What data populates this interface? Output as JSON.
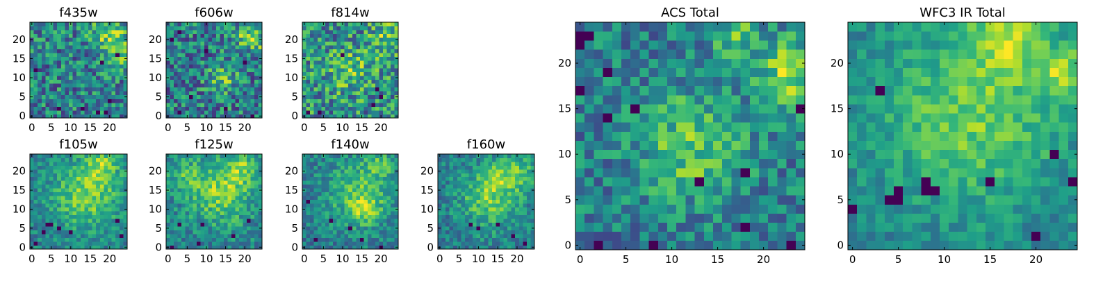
{
  "figure": {
    "background": "#ffffff",
    "colormap": "viridis"
  },
  "chart_data": [
    {
      "type": "heatmap",
      "title": "f435w",
      "xlabel": "",
      "ylabel": "",
      "grid": false,
      "xlim": [
        0,
        25
      ],
      "ylim": [
        0,
        25
      ],
      "xticks": [
        0,
        5,
        10,
        15,
        20
      ],
      "yticks": [
        0,
        5,
        10,
        15,
        20
      ],
      "xtick_labels": [
        "0",
        "5",
        "10",
        "15",
        "20"
      ],
      "ytick_labels": [
        "0",
        "5",
        "10",
        "15",
        "20"
      ],
      "size": 25,
      "seed": 11,
      "blobs": [
        [
          20,
          21,
          3.5,
          0.35
        ],
        [
          22,
          16,
          2.5,
          0.25
        ]
      ],
      "noise": 0.32,
      "dark_pixels": [
        [
          22,
          16
        ],
        [
          18,
          14
        ],
        [
          17,
          1
        ],
        [
          19,
          1
        ],
        [
          1,
          12
        ],
        [
          7,
          2
        ],
        [
          13,
          2
        ],
        [
          20,
          4
        ]
      ]
    },
    {
      "type": "heatmap",
      "title": "f606w",
      "xlabel": "",
      "ylabel": "",
      "grid": false,
      "xlim": [
        0,
        25
      ],
      "ylim": [
        0,
        25
      ],
      "xticks": [
        0,
        5,
        10,
        15,
        20
      ],
      "yticks": [
        0,
        5,
        10,
        15,
        20
      ],
      "xtick_labels": [
        "0",
        "5",
        "10",
        "15",
        "20"
      ],
      "ytick_labels": [
        "0",
        "5",
        "10",
        "15",
        "20"
      ],
      "size": 25,
      "seed": 23,
      "blobs": [
        [
          14,
          10,
          2.5,
          0.35
        ],
        [
          23,
          20,
          2.5,
          0.3
        ],
        [
          19,
          21,
          2.5,
          0.2
        ]
      ],
      "noise": 0.34,
      "dark_pixels": [
        [
          1,
          20
        ],
        [
          3,
          22
        ],
        [
          22,
          0
        ],
        [
          6,
          5
        ],
        [
          15,
          2
        ],
        [
          3,
          1
        ],
        [
          20,
          14
        ],
        [
          10,
          17
        ]
      ]
    },
    {
      "type": "heatmap",
      "title": "f814w",
      "xlabel": "",
      "ylabel": "",
      "grid": false,
      "xlim": [
        0,
        25
      ],
      "ylim": [
        0,
        25
      ],
      "xticks": [
        0,
        5,
        10,
        15,
        20
      ],
      "yticks": [
        0,
        5,
        10,
        15,
        20
      ],
      "xtick_labels": [
        "0",
        "5",
        "10",
        "15",
        "20"
      ],
      "ytick_labels": [
        "0",
        "5",
        "10",
        "15",
        "20"
      ],
      "size": 25,
      "seed": 37,
      "blobs": [
        [
          12,
          12,
          4,
          0.2
        ],
        [
          22,
          20,
          3,
          0.25
        ]
      ],
      "noise": 0.3,
      "dark_pixels": [
        [
          19,
          7
        ],
        [
          20,
          5
        ],
        [
          1,
          1
        ],
        [
          10,
          16
        ],
        [
          18,
          3
        ],
        [
          4,
          1
        ]
      ]
    },
    {
      "type": "heatmap",
      "title": "f105w",
      "xlabel": "",
      "ylabel": "",
      "grid": false,
      "xlim": [
        0,
        25
      ],
      "ylim": [
        0,
        25
      ],
      "xticks": [
        0,
        5,
        10,
        15,
        20
      ],
      "yticks": [
        0,
        5,
        10,
        15,
        20
      ],
      "xtick_labels": [
        "0",
        "5",
        "10",
        "15",
        "20"
      ],
      "ytick_labels": [
        "0",
        "5",
        "10",
        "15",
        "20"
      ],
      "size": 25,
      "seed": 41,
      "blobs": [
        [
          14,
          14,
          6,
          0.4
        ],
        [
          18,
          22,
          3,
          0.3
        ]
      ],
      "noise": 0.18,
      "dark_pixels": [
        [
          5,
          6
        ],
        [
          7,
          5
        ],
        [
          4,
          6
        ],
        [
          10,
          4
        ],
        [
          22,
          7
        ],
        [
          1,
          1
        ],
        [
          23,
          3
        ],
        [
          3,
          4
        ]
      ]
    },
    {
      "type": "heatmap",
      "title": "f125w",
      "xlabel": "",
      "ylabel": "",
      "grid": false,
      "xlim": [
        0,
        25
      ],
      "ylim": [
        0,
        25
      ],
      "xticks": [
        0,
        5,
        10,
        15,
        20
      ],
      "yticks": [
        0,
        5,
        10,
        15,
        20
      ],
      "xtick_labels": [
        "0",
        "5",
        "10",
        "15",
        "20"
      ],
      "ytick_labels": [
        "0",
        "5",
        "10",
        "15",
        "20"
      ],
      "size": 25,
      "seed": 53,
      "blobs": [
        [
          14,
          15,
          6,
          0.4
        ],
        [
          20,
          21,
          3,
          0.25
        ],
        [
          4,
          19,
          3,
          0.2
        ]
      ],
      "noise": 0.2,
      "dark_pixels": [
        [
          9,
          6
        ],
        [
          3,
          6
        ],
        [
          17,
          3
        ],
        [
          8,
          1
        ],
        [
          21,
          7
        ],
        [
          1,
          0
        ]
      ]
    },
    {
      "type": "heatmap",
      "title": "f140w",
      "xlabel": "",
      "ylabel": "",
      "grid": false,
      "xlim": [
        0,
        25
      ],
      "ylim": [
        0,
        25
      ],
      "xticks": [
        0,
        5,
        10,
        15,
        20
      ],
      "yticks": [
        0,
        5,
        10,
        15,
        20
      ],
      "xtick_labels": [
        "0",
        "5",
        "10",
        "15",
        "20"
      ],
      "ytick_labels": [
        "0",
        "5",
        "10",
        "15",
        "20"
      ],
      "size": 25,
      "seed": 67,
      "blobs": [
        [
          14,
          14,
          6,
          0.35
        ],
        [
          16,
          10,
          2.5,
          0.3
        ],
        [
          20,
          22,
          3,
          0.25
        ]
      ],
      "noise": 0.2,
      "dark_pixels": [
        [
          3,
          2
        ],
        [
          15,
          2
        ],
        [
          7,
          7
        ],
        [
          12,
          5
        ],
        [
          20,
          0
        ],
        [
          1,
          12
        ]
      ]
    },
    {
      "type": "heatmap",
      "title": "f160w",
      "xlabel": "",
      "ylabel": "",
      "grid": false,
      "xlim": [
        0,
        25
      ],
      "ylim": [
        0,
        25
      ],
      "xticks": [
        0,
        5,
        10,
        15,
        20
      ],
      "yticks": [
        0,
        5,
        10,
        15,
        20
      ],
      "xtick_labels": [
        "0",
        "5",
        "10",
        "15",
        "20"
      ],
      "ytick_labels": [
        "0",
        "5",
        "10",
        "15",
        "20"
      ],
      "size": 25,
      "seed": 79,
      "blobs": [
        [
          13,
          13,
          5.5,
          0.4
        ],
        [
          16,
          19,
          3,
          0.25
        ],
        [
          22,
          20,
          3,
          0.25
        ]
      ],
      "noise": 0.2,
      "dark_pixels": [
        [
          8,
          6
        ],
        [
          15,
          6
        ],
        [
          19,
          3
        ],
        [
          22,
          1
        ],
        [
          10,
          5
        ]
      ]
    },
    {
      "type": "heatmap",
      "title": "ACS Total",
      "xlabel": "",
      "ylabel": "",
      "grid": false,
      "xlim": [
        0,
        25
      ],
      "ylim": [
        0,
        25
      ],
      "xticks": [
        0,
        5,
        10,
        15,
        20
      ],
      "yticks": [
        0,
        5,
        10,
        15,
        20
      ],
      "xtick_labels": [
        "0",
        "5",
        "10",
        "15",
        "20"
      ],
      "ytick_labels": [
        "0",
        "5",
        "10",
        "15",
        "20"
      ],
      "size": 25,
      "seed": 97,
      "blobs": [
        [
          12,
          11,
          4,
          0.35
        ],
        [
          23,
          19,
          2.5,
          0.45
        ],
        [
          17,
          23,
          2,
          0.3
        ]
      ],
      "noise": 0.24,
      "dark_pixels": [
        [
          0,
          23
        ],
        [
          1,
          23
        ],
        [
          0,
          22
        ],
        [
          3,
          19
        ],
        [
          6,
          15
        ],
        [
          3,
          14
        ],
        [
          18,
          8
        ],
        [
          13,
          7
        ],
        [
          18,
          2
        ],
        [
          2,
          0
        ],
        [
          23,
          0
        ],
        [
          24,
          15
        ],
        [
          0,
          17
        ],
        [
          8,
          0
        ]
      ]
    },
    {
      "type": "heatmap",
      "title": "WFC3 IR Total",
      "xlabel": "",
      "ylabel": "",
      "grid": false,
      "xlim": [
        0,
        25
      ],
      "ylim": [
        0,
        25
      ],
      "xticks": [
        0,
        5,
        10,
        15,
        20
      ],
      "yticks": [
        0,
        5,
        10,
        15,
        20
      ],
      "xtick_labels": [
        "0",
        "5",
        "10",
        "15",
        "20"
      ],
      "ytick_labels": [
        "0",
        "5",
        "10",
        "15",
        "20"
      ],
      "size": 25,
      "seed": 131,
      "blobs": [
        [
          13,
          14,
          7,
          0.35
        ],
        [
          17,
          23,
          3,
          0.35
        ],
        [
          23,
          19,
          2,
          0.35
        ]
      ],
      "noise": 0.14,
      "dark_pixels": [
        [
          4,
          5
        ],
        [
          5,
          6
        ],
        [
          5,
          5
        ],
        [
          8,
          6
        ],
        [
          9,
          6
        ],
        [
          8,
          7
        ],
        [
          15,
          7
        ],
        [
          20,
          1
        ],
        [
          24,
          7
        ],
        [
          22,
          10
        ],
        [
          3,
          17
        ],
        [
          0,
          4
        ]
      ]
    }
  ]
}
